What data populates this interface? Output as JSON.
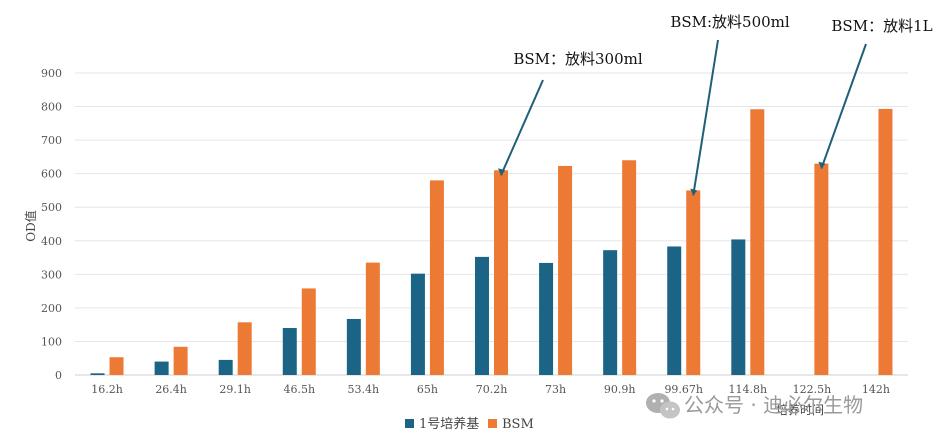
{
  "chart_data": {
    "type": "bar",
    "categories": [
      "16.2h",
      "26.4h",
      "29.1h",
      "46.5h",
      "53.4h",
      "65h",
      "70.2h",
      "73h",
      "90.9h",
      "99.67h",
      "114.8h",
      "122.5h",
      "142h"
    ],
    "series": [
      {
        "name": "1号培养基",
        "color": "#1b6486",
        "values": [
          5,
          40,
          45,
          140,
          167,
          302,
          352,
          334,
          372,
          383,
          404,
          null,
          null
        ]
      },
      {
        "name": "BSM",
        "color": "#ec7a35",
        "values": [
          53,
          84,
          157,
          258,
          335,
          580,
          610,
          623,
          640,
          550,
          792,
          630,
          793
        ]
      }
    ],
    "xlabel": "培养时间",
    "ylabel": "OD值",
    "ylim": [
      0,
      900
    ],
    "yticks": [
      0,
      100,
      200,
      300,
      400,
      500,
      600,
      700,
      800,
      900
    ],
    "grid": true,
    "legend_position": "bottom",
    "annotations": [
      {
        "text": "BSM：放料300ml",
        "category": "70.2h",
        "series": "BSM",
        "value": 610
      },
      {
        "text": "BSM:放料500ml",
        "category": "99.67h",
        "series": "BSM",
        "value": 550
      },
      {
        "text": "BSM：放料1L",
        "category": "122.5h",
        "series": "BSM",
        "value": 630
      }
    ],
    "annotation_color": "#1f5f78",
    "grid_color": "#e6e6e6"
  },
  "watermark": {
    "text": "公众号 · 迪必尔生物",
    "icon": "wechat-icon"
  }
}
